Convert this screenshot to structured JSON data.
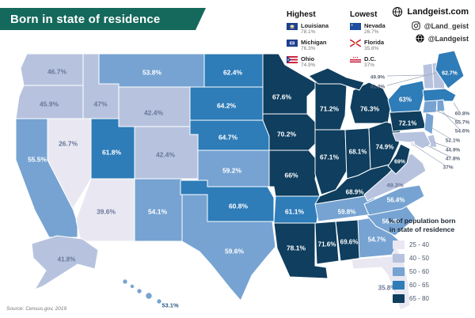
{
  "title": "Born in state of residence",
  "branding": {
    "site": "Landgeist.com",
    "instagram_handle": "@Land_geist",
    "site_handle": "@Landgeist"
  },
  "highlights": {
    "highest_label": "Highest",
    "lowest_label": "Lowest",
    "highest": [
      {
        "state": "Louisiana",
        "value": "78.1%"
      },
      {
        "state": "Michigan",
        "value": "76.3%"
      },
      {
        "state": "Ohio",
        "value": "74.9%"
      }
    ],
    "lowest": [
      {
        "state": "Nevada",
        "value": "26.7%"
      },
      {
        "state": "Florida",
        "value": "35.8%"
      },
      {
        "state": "D.C.",
        "value": "37%"
      }
    ]
  },
  "legend": {
    "title_line1": "% of population born",
    "title_line2": "in state of residence",
    "buckets": [
      {
        "label": "25 - 40",
        "color": "#e9e8f2"
      },
      {
        "label": "40 - 50",
        "color": "#b7c3de"
      },
      {
        "label": "50 - 60",
        "color": "#76a3d2"
      },
      {
        "label": "60 - 65",
        "color": "#2e7cb8"
      },
      {
        "label": "65 - 80",
        "color": "#0f3e5e"
      }
    ]
  },
  "source": "Source: Census.gov, 2019",
  "chart_data": {
    "type": "choropleth",
    "title": "Born in state of residence",
    "unit": "% of population born in state of residence",
    "legend_ranges": [
      "25-40",
      "40-50",
      "50-60",
      "60-65",
      "65-80"
    ],
    "states": [
      {
        "abbr": "WA",
        "name": "Washington",
        "value": "46.7%",
        "number": 46.7,
        "bucket": 1
      },
      {
        "abbr": "OR",
        "name": "Oregon",
        "value": "45.9%",
        "number": 45.9,
        "bucket": 1
      },
      {
        "abbr": "CA",
        "name": "California",
        "value": "55.5%",
        "number": 55.5,
        "bucket": 2
      },
      {
        "abbr": "NV",
        "name": "Nevada",
        "value": "26.7%",
        "number": 26.7,
        "bucket": 0
      },
      {
        "abbr": "ID",
        "name": "Idaho",
        "value": "47%",
        "number": 47,
        "bucket": 1
      },
      {
        "abbr": "MT",
        "name": "Montana",
        "value": "53.8%",
        "number": 53.8,
        "bucket": 2
      },
      {
        "abbr": "WY",
        "name": "Wyoming",
        "value": "42.4%",
        "number": 42.4,
        "bucket": 1
      },
      {
        "abbr": "UT",
        "name": "Utah",
        "value": "61.8%",
        "number": 61.8,
        "bucket": 3
      },
      {
        "abbr": "CO",
        "name": "Colorado",
        "value": "42.4%",
        "number": 42.4,
        "bucket": 1
      },
      {
        "abbr": "AZ",
        "name": "Arizona",
        "value": "39.6%",
        "number": 39.6,
        "bucket": 0
      },
      {
        "abbr": "NM",
        "name": "New Mexico",
        "value": "54.1%",
        "number": 54.1,
        "bucket": 2
      },
      {
        "abbr": "ND",
        "name": "North Dakota",
        "value": "62.4%",
        "number": 62.4,
        "bucket": 3
      },
      {
        "abbr": "SD",
        "name": "South Dakota",
        "value": "64.2%",
        "number": 64.2,
        "bucket": 3
      },
      {
        "abbr": "NE",
        "name": "Nebraska",
        "value": "64.7%",
        "number": 64.7,
        "bucket": 3
      },
      {
        "abbr": "KS",
        "name": "Kansas",
        "value": "59.2%",
        "number": 59.2,
        "bucket": 2
      },
      {
        "abbr": "OK",
        "name": "Oklahoma",
        "value": "60.8%",
        "number": 60.8,
        "bucket": 3
      },
      {
        "abbr": "TX",
        "name": "Texas",
        "value": "59.6%",
        "number": 59.6,
        "bucket": 2
      },
      {
        "abbr": "MN",
        "name": "Minnesota",
        "value": "67.6%",
        "number": 67.6,
        "bucket": 4
      },
      {
        "abbr": "IA",
        "name": "Iowa",
        "value": "70.2%",
        "number": 70.2,
        "bucket": 4
      },
      {
        "abbr": "MO",
        "name": "Missouri",
        "value": "66%",
        "number": 66,
        "bucket": 4
      },
      {
        "abbr": "AR",
        "name": "Arkansas",
        "value": "61.1%",
        "number": 61.1,
        "bucket": 3
      },
      {
        "abbr": "LA",
        "name": "Louisiana",
        "value": "78.1%",
        "number": 78.1,
        "bucket": 4
      },
      {
        "abbr": "WI",
        "name": "Wisconsin",
        "value": "71.2%",
        "number": 71.2,
        "bucket": 4
      },
      {
        "abbr": "IL",
        "name": "Illinois",
        "value": "67.1%",
        "number": 67.1,
        "bucket": 4
      },
      {
        "abbr": "IN",
        "name": "Indiana",
        "value": "68.1%",
        "number": 68.1,
        "bucket": 4
      },
      {
        "abbr": "MI",
        "name": "Michigan",
        "value": "76.3%",
        "number": 76.3,
        "bucket": 4
      },
      {
        "abbr": "OH",
        "name": "Ohio",
        "value": "74.9%",
        "number": 74.9,
        "bucket": 4
      },
      {
        "abbr": "KY",
        "name": "Kentucky",
        "value": "68.9%",
        "number": 68.9,
        "bucket": 4
      },
      {
        "abbr": "TN",
        "name": "Tennessee",
        "value": "59.8%",
        "number": 59.8,
        "bucket": 2
      },
      {
        "abbr": "MS",
        "name": "Mississippi",
        "value": "71.6%",
        "number": 71.6,
        "bucket": 4
      },
      {
        "abbr": "AL",
        "name": "Alabama",
        "value": "69.6%",
        "number": 69.6,
        "bucket": 4
      },
      {
        "abbr": "GA",
        "name": "Georgia",
        "value": "54.7%",
        "number": 54.7,
        "bucket": 2
      },
      {
        "abbr": "FL",
        "name": "Florida",
        "value": "35.8%",
        "number": 35.8,
        "bucket": 0
      },
      {
        "abbr": "SC",
        "name": "South Carolina",
        "value": "56.3%",
        "number": 56.3,
        "bucket": 2
      },
      {
        "abbr": "NC",
        "name": "North Carolina",
        "value": "56.4%",
        "number": 56.4,
        "bucket": 2
      },
      {
        "abbr": "VA",
        "name": "Virginia",
        "value": "49.3%",
        "number": 49.3,
        "bucket": 1
      },
      {
        "abbr": "WV",
        "name": "West Virginia",
        "value": "69%",
        "number": 69,
        "bucket": 4
      },
      {
        "abbr": "PA",
        "name": "Pennsylvania",
        "value": "72.1%",
        "number": 72.1,
        "bucket": 4
      },
      {
        "abbr": "NY",
        "name": "New York",
        "value": "63%",
        "number": 63,
        "bucket": 3
      },
      {
        "abbr": "NJ",
        "name": "New Jersey",
        "value": "52.1%",
        "number": 52.1,
        "bucket": 2
      },
      {
        "abbr": "DE",
        "name": "Delaware",
        "value": "44.9%",
        "number": 44.9,
        "bucket": 1
      },
      {
        "abbr": "MD",
        "name": "Maryland",
        "value": "47.8%",
        "number": 47.8,
        "bucket": 1
      },
      {
        "abbr": "DC",
        "name": "D.C.",
        "value": "37%",
        "number": 37,
        "bucket": 0
      },
      {
        "abbr": "VT",
        "name": "Vermont",
        "value": "49.9%",
        "number": 49.9,
        "bucket": 1
      },
      {
        "abbr": "NH",
        "name": "New Hampshire",
        "value": "41.3%",
        "number": 41.3,
        "bucket": 1
      },
      {
        "abbr": "MA",
        "name": "Massachusetts",
        "value": "60.8%",
        "number": 60.8,
        "bucket": 3
      },
      {
        "abbr": "CT",
        "name": "Connecticut",
        "value": "55.7%",
        "number": 55.7,
        "bucket": 2
      },
      {
        "abbr": "RI",
        "name": "Rhode Island",
        "value": "54.6%",
        "number": 54.6,
        "bucket": 2
      },
      {
        "abbr": "ME",
        "name": "Maine",
        "value": "62.7%",
        "number": 62.7,
        "bucket": 3
      },
      {
        "abbr": "AK",
        "name": "Alaska",
        "value": "41.8%",
        "number": 41.8,
        "bucket": 1
      },
      {
        "abbr": "HI",
        "name": "Hawaii",
        "value": "53.1%",
        "number": 53.1,
        "bucket": 2
      }
    ]
  }
}
